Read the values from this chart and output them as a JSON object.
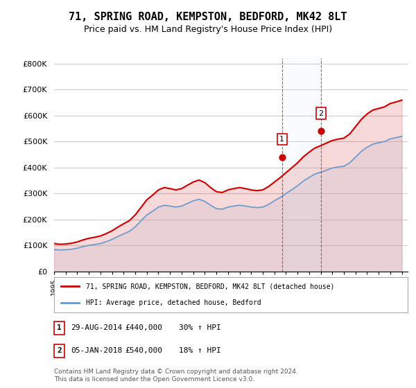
{
  "title": "71, SPRING ROAD, KEMPSTON, BEDFORD, MK42 8LT",
  "subtitle": "Price paid vs. HM Land Registry's House Price Index (HPI)",
  "title_fontsize": 11,
  "subtitle_fontsize": 9,
  "ylabel_ticks": [
    "£0",
    "£100K",
    "£200K",
    "£300K",
    "£400K",
    "£500K",
    "£600K",
    "£700K",
    "£800K"
  ],
  "ytick_values": [
    0,
    100000,
    200000,
    300000,
    400000,
    500000,
    600000,
    700000,
    800000
  ],
  "ylim": [
    0,
    820000
  ],
  "xlim_start": 1995.0,
  "xlim_end": 2025.5,
  "sale1_date": 2014.66,
  "sale1_price": 440000,
  "sale1_label": "1",
  "sale2_date": 2018.03,
  "sale2_price": 540000,
  "sale2_label": "2",
  "legend_line1": "71, SPRING ROAD, KEMPSTON, BEDFORD, MK42 8LT (detached house)",
  "legend_line2": "HPI: Average price, detached house, Bedford",
  "table_row1": [
    "1",
    "29-AUG-2014",
    "£440,000",
    "30% ↑ HPI"
  ],
  "table_row2": [
    "2",
    "05-JAN-2018",
    "£540,000",
    "18% ↑ HPI"
  ],
  "footnote": "Contains HM Land Registry data © Crown copyright and database right 2024.\nThis data is licensed under the Open Government Licence v3.0.",
  "line_color_red": "#cc0000",
  "line_color_blue": "#6699cc",
  "fill_color_blue": "#d0e4f5",
  "vline_color": "#cc0000",
  "dot_color_red": "#cc0000",
  "background_color": "#ffffff",
  "grid_color": "#cccccc"
}
